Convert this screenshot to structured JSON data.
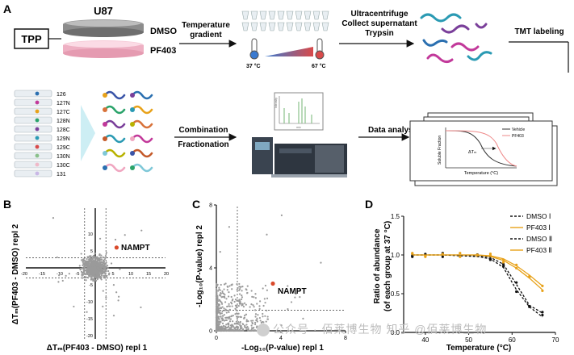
{
  "panelA": {
    "label": "A",
    "tpp": "TPP",
    "cell_line": "U87",
    "dmso": "DMSO",
    "pf403": "PF403",
    "temp_gradient_line1": "Temperature",
    "temp_gradient_line2": "gradient",
    "t_low": "37 °C",
    "t_high": "67 °C",
    "step2_line1": "Ultracentrifuge",
    "step2_line2": "Collect supernatant",
    "step2_line3": "Trypsin",
    "tmt": "TMT labeling",
    "tmt_channels": [
      "126",
      "127N",
      "127C",
      "128N",
      "128C",
      "129N",
      "129C",
      "130N",
      "130C",
      "131"
    ],
    "combination": "Combination",
    "fractionation": "Fractionation",
    "data_analysis": "Data analysis",
    "mini_chart": {
      "legend_vehicle": "Vehicle",
      "legend_pf403": "PF403",
      "ylabel": "Soluble Fraction",
      "xlabel": "Temperature (°C)",
      "delta": "ΔTₘ"
    },
    "spectrum_ylabel": "Intensity",
    "spectrum_xlabel": "m/z"
  },
  "panelB": {
    "label": "B",
    "ylabel": "ΔTₘ(PF403 - DMSO) repl 2",
    "xlabel": "ΔTₘ(PF403 - DMSO) repl 1",
    "highlight": "NAMPT",
    "xticks": [
      "-20",
      "-15",
      "-10",
      "-5",
      "5",
      "10",
      "15",
      "20"
    ],
    "yticks": [
      "10",
      "5",
      "-5",
      "-10",
      "-15",
      "-20"
    ]
  },
  "panelC": {
    "label": "C",
    "ylabel": "-Log₁₀(P-value) repl 2",
    "xlabel": "-Log₁₀(P-value) repl 1",
    "highlight": "NAMPT",
    "xticks": [
      "0",
      "4",
      "8"
    ],
    "yticks": [
      "0",
      "4",
      "8"
    ]
  },
  "panelD": {
    "label": "D",
    "ylabel_line1": "Ratio of abundance",
    "ylabel_line2": "(of each group at 37 °C)",
    "xlabel": "Temperature (°C)",
    "xticks": [
      "40",
      "50",
      "60",
      "70"
    ],
    "yticks": [
      "0.0",
      "0.5",
      "1.0",
      "1.5"
    ],
    "legend": [
      "DMSO Ⅰ",
      "PF403 Ⅰ",
      "DMSO Ⅱ",
      "PF403 Ⅱ"
    ]
  },
  "colors": {
    "highlight": "#d94a2b",
    "gold": "#e8a21a",
    "gray_points": "#9a9a9a",
    "blue_therm": "#3a7ad0",
    "red_therm": "#d84a4a",
    "pf403_tube": "#f0b8c8"
  },
  "watermark": "公众号 · 佰莱博生物 知乎 @佰莱博生物",
  "chart_data": [
    {
      "type": "scatter",
      "title": "",
      "xlabel": "ΔTₘ(PF403 - DMSO) repl 1",
      "ylabel": "ΔTₘ(PF403 - DMSO) repl 2",
      "xlim": [
        -20,
        20
      ],
      "ylim": [
        -20,
        12
      ],
      "series": [
        {
          "name": "NAMPT",
          "points": [
            [
              6,
              6
            ]
          ]
        }
      ]
    },
    {
      "type": "scatter",
      "title": "",
      "xlabel": "-Log₁₀(P-value) repl 1",
      "ylabel": "-Log₁₀(P-value) repl 2",
      "xlim": [
        0,
        8
      ],
      "ylim": [
        0,
        8
      ],
      "series": [
        {
          "name": "NAMPT",
          "points": [
            [
              3.5,
              3.0
            ]
          ]
        }
      ]
    },
    {
      "type": "line",
      "title": "",
      "xlabel": "Temperature (°C)",
      "ylabel": "Ratio of abundance (of each group at 37 °C)",
      "xlim": [
        35,
        70
      ],
      "ylim": [
        0.0,
        1.5
      ],
      "x": [
        37,
        40,
        44,
        48,
        52,
        55,
        58,
        61,
        64,
        67
      ],
      "series": [
        {
          "name": "DMSO Ⅰ",
          "values": [
            1.0,
            1.0,
            1.0,
            1.0,
            0.99,
            0.97,
            0.88,
            0.62,
            0.35,
            0.25
          ]
        },
        {
          "name": "PF403 Ⅰ",
          "values": [
            1.0,
            1.0,
            1.0,
            1.0,
            1.0,
            0.98,
            0.93,
            0.83,
            0.7,
            0.55
          ]
        },
        {
          "name": "DMSO Ⅱ",
          "values": [
            1.0,
            1.0,
            1.0,
            0.99,
            0.98,
            0.95,
            0.84,
            0.55,
            0.33,
            0.2
          ]
        },
        {
          "name": "PF403 Ⅱ",
          "values": [
            1.0,
            1.0,
            1.0,
            1.0,
            1.0,
            0.99,
            0.95,
            0.86,
            0.74,
            0.6
          ]
        }
      ]
    }
  ]
}
